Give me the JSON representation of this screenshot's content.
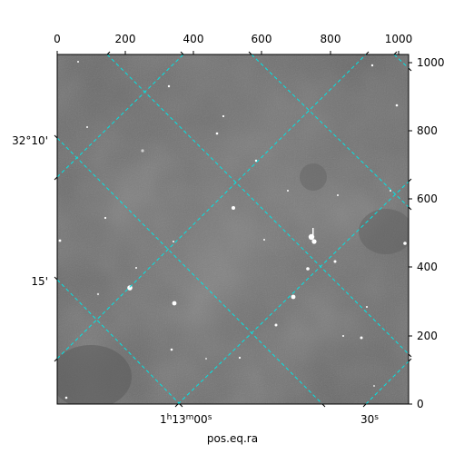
{
  "figure": {
    "xlabel": "pos.eq.ra",
    "grid_color": "#00e5e5",
    "frame_color": "#000000"
  },
  "pixel_axes": {
    "top_ticks": [
      "0",
      "200",
      "400",
      "600",
      "800",
      "1000"
    ],
    "right_ticks": [
      "0",
      "200",
      "400",
      "600",
      "800",
      "1000"
    ]
  },
  "world_axes": {
    "dec_labels": [
      {
        "text": "32°10'"
      },
      {
        "text": "15'"
      }
    ],
    "ra_labels": [
      {
        "h": "1",
        "m": "13",
        "s": "00"
      },
      {
        "s": "30"
      }
    ]
  },
  "image": {
    "background": "#6f6f6f",
    "stars": [
      {
        "id": "s1"
      },
      {
        "id": "s2"
      },
      {
        "id": "s3"
      },
      {
        "id": "s4"
      },
      {
        "id": "s5"
      }
    ]
  }
}
